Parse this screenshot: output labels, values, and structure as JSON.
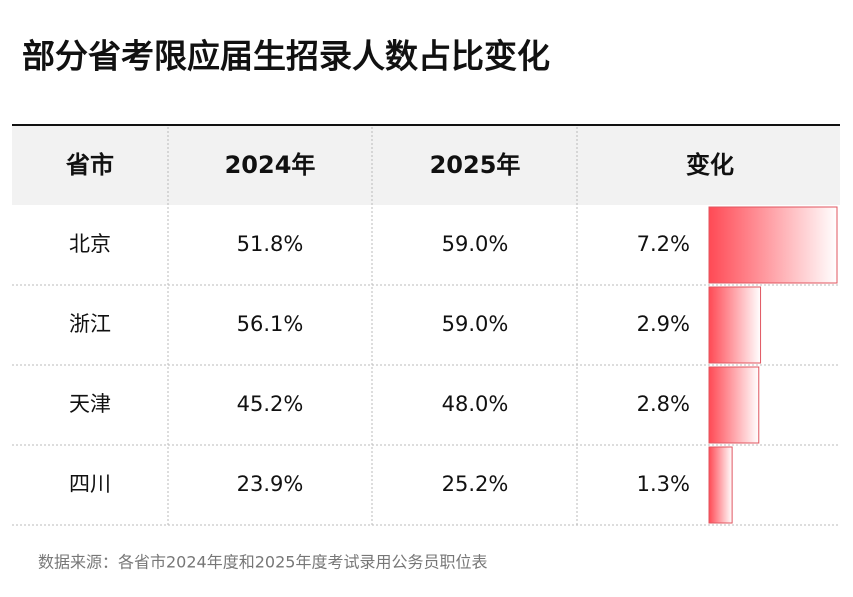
{
  "title": "部分省考限应届生招录人数占比变化",
  "table": {
    "columns": [
      "省市",
      "2024年",
      "2025年",
      "变化"
    ],
    "rows": [
      [
        "北京",
        "51.8%",
        "59.0%"
      ],
      [
        "浙江",
        "56.1%",
        "59.0%"
      ],
      [
        "天津",
        "45.2%",
        "48.0%"
      ],
      [
        "四川",
        "23.9%",
        "25.2%"
      ]
    ],
    "change": {
      "values": [
        7.2,
        2.9,
        2.8,
        1.3
      ],
      "value_labels": [
        "7.2%",
        "2.9%",
        "2.8%",
        "1.3%"
      ]
    }
  },
  "source": "数据来源：各省市2024年度和2025年度考试录用公务员职位表"
}
